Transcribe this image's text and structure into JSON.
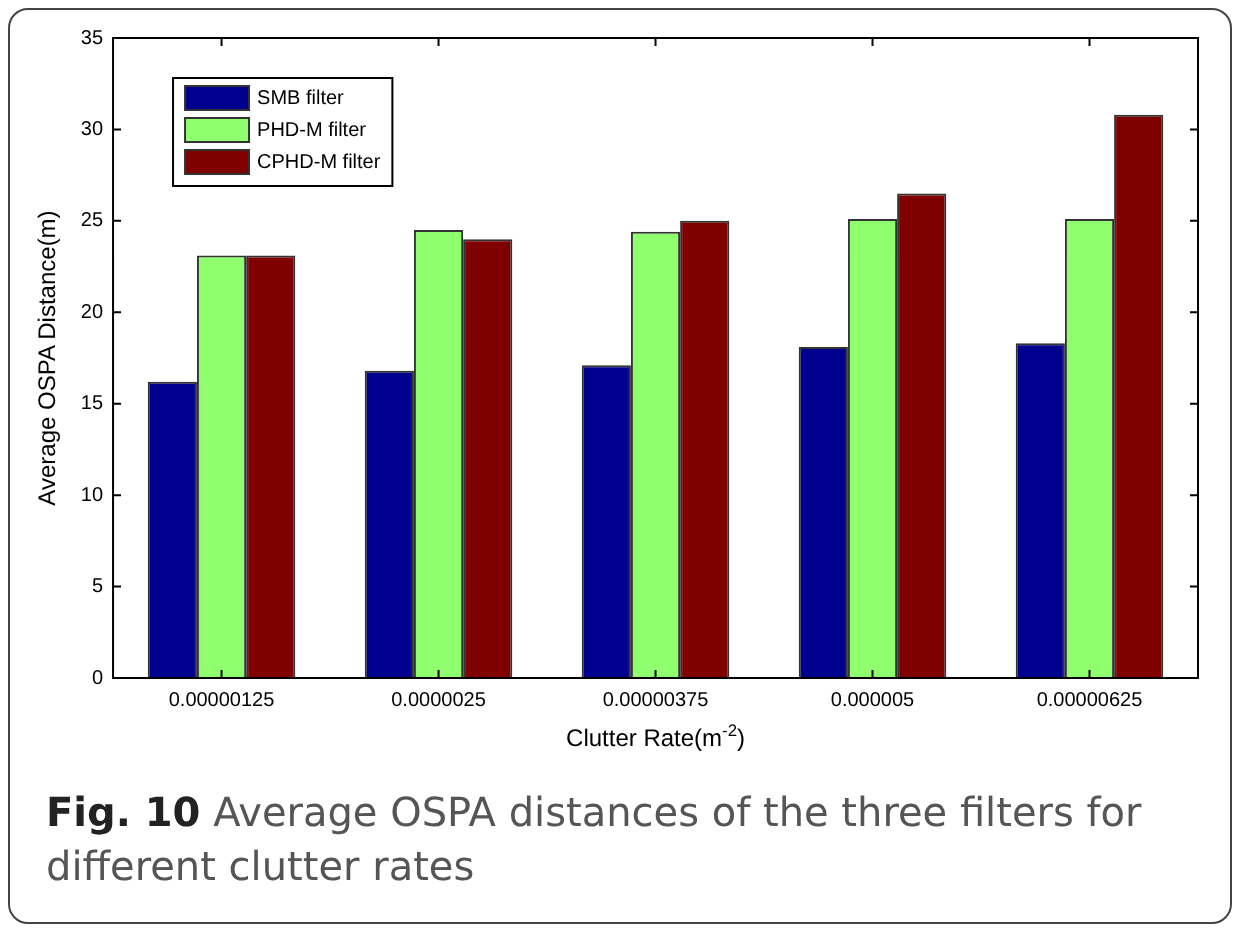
{
  "chart_data": {
    "type": "bar",
    "categories": [
      "0.00000125",
      "0.0000025",
      "0.00000375",
      "0.000005",
      "0.00000625"
    ],
    "series": [
      {
        "name": "SMB filter",
        "color": "#00008f",
        "values": [
          16.2,
          16.8,
          17.1,
          18.1,
          18.3
        ]
      },
      {
        "name": "PHD-M filter",
        "color": "#8fff70",
        "values": [
          23.1,
          24.5,
          24.4,
          25.1,
          25.1
        ]
      },
      {
        "name": "CPHD-M filter",
        "color": "#800000",
        "values": [
          23.1,
          24.0,
          25.0,
          26.5,
          30.8
        ]
      }
    ],
    "xlabel": "Clutter Rate(m$^{-2}$)",
    "ylabel": "Average OSPA Distance(m)",
    "ylim": [
      0,
      35
    ],
    "yticks": [
      0,
      5,
      10,
      15,
      20,
      25,
      30,
      35
    ],
    "grid": false,
    "legend": "top left",
    "annotations": [
      "Fig. 10",
      "Average OSPA distances of the three filters for different clutter rates"
    ]
  }
}
